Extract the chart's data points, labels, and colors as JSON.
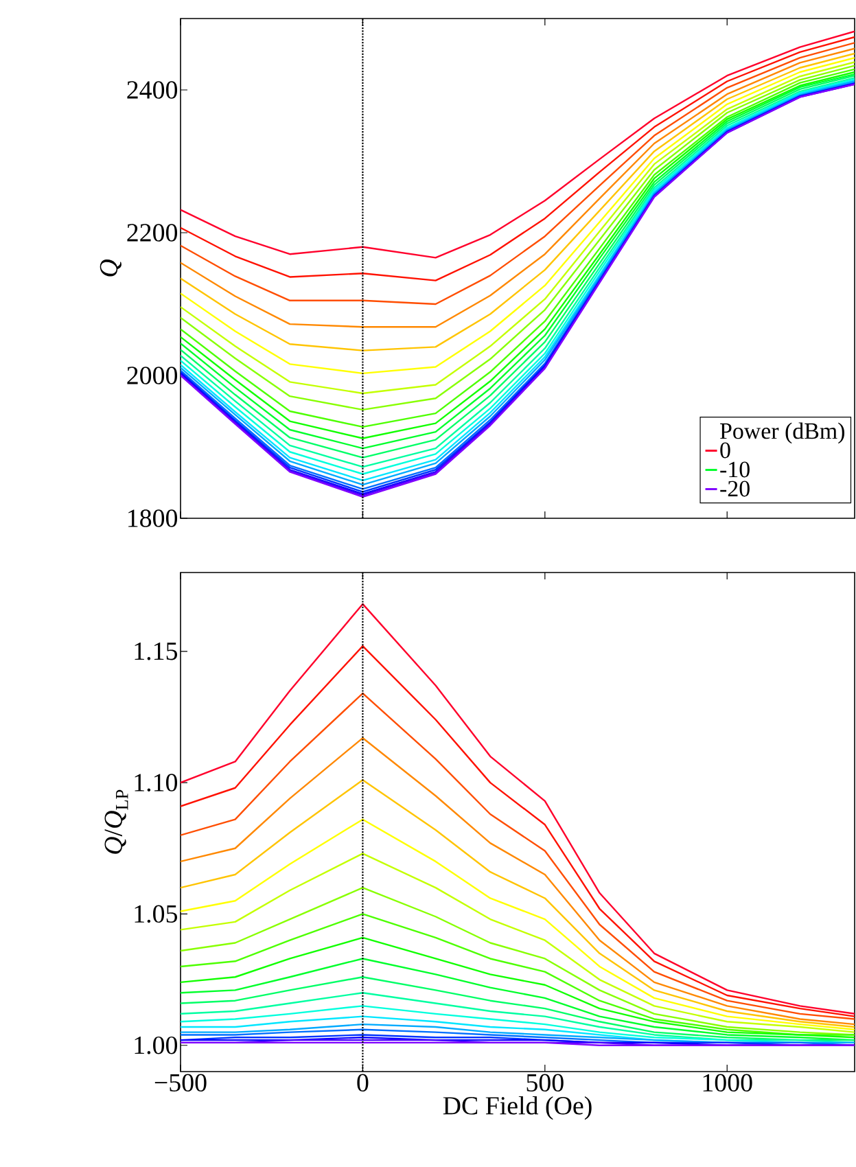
{
  "chart_data": [
    {
      "type": "line",
      "ylabel": "*Q*",
      "legend_title": "Power (dBm)",
      "legend": "bottom right",
      "marker": "none",
      "line_style": "solid",
      "tick_labels": "y",
      "xlim": [
        -500,
        1350
      ],
      "ylim": [
        1800,
        2500
      ],
      "xticks": [
        -500,
        0,
        500,
        1000
      ],
      "yticks": [
        1800,
        2000,
        2200,
        2400
      ],
      "ref_lines": [
        {
          "axis": "x",
          "value": 0,
          "color": "#000000",
          "line_style": "dotted"
        }
      ],
      "x": [
        -500,
        -350,
        -200,
        0,
        200,
        350,
        500,
        650,
        800,
        1000,
        1200,
        1350
      ],
      "series": [
        {
          "name": "0",
          "color": "#ff002b",
          "values": [
            2232,
            2195,
            2170,
            2180,
            2165,
            2197,
            2245,
            2303,
            2360,
            2420,
            2460,
            2482
          ]
        },
        {
          "color": "#ff1100",
          "values": [
            2207,
            2167,
            2138,
            2143,
            2133,
            2169,
            2220,
            2285,
            2348,
            2412,
            2453,
            2474
          ]
        },
        {
          "color": "#ff4d00",
          "values": [
            2182,
            2139,
            2105,
            2105,
            2100,
            2140,
            2195,
            2266,
            2336,
            2403,
            2445,
            2466
          ]
        },
        {
          "color": "#ff8800",
          "values": [
            2158,
            2111,
            2072,
            2068,
            2068,
            2112,
            2170,
            2248,
            2325,
            2394,
            2438,
            2458
          ]
        },
        {
          "color": "#ffc400",
          "values": [
            2136,
            2086,
            2044,
            2035,
            2040,
            2086,
            2148,
            2231,
            2314,
            2387,
            2431,
            2451
          ]
        },
        {
          "color": "#ffff00",
          "values": [
            2115,
            2062,
            2016,
            2003,
            2012,
            2062,
            2126,
            2215,
            2304,
            2380,
            2425,
            2445
          ]
        },
        {
          "color": "#c4ff00",
          "values": [
            2096,
            2041,
            1991,
            1975,
            1987,
            2041,
            2107,
            2202,
            2296,
            2373,
            2419,
            2439
          ]
        },
        {
          "color": "#88ff00",
          "values": [
            2081,
            2024,
            1971,
            1952,
            1968,
            2023,
            2092,
            2190,
            2288,
            2368,
            2414,
            2434
          ]
        },
        {
          "color": "#4dff00",
          "values": [
            2065,
            2006,
            1950,
            1928,
            1947,
            2005,
            2076,
            2178,
            2281,
            2362,
            2410,
            2429
          ]
        },
        {
          "color": "#11ff00",
          "values": [
            2054,
            1994,
            1936,
            1912,
            1933,
            1992,
            2065,
            2170,
            2276,
            2359,
            2406,
            2425
          ]
        },
        {
          "name": "-10",
          "color": "#00ff2b",
          "values": [
            2045,
            1983,
            1924,
            1898,
            1921,
            1982,
            2056,
            2164,
            2271,
            2356,
            2404,
            2422
          ]
        },
        {
          "color": "#00ff66",
          "values": [
            2036,
            1973,
            1913,
            1885,
            1910,
            1972,
            2047,
            2157,
            2267,
            2353,
            2401,
            2420
          ]
        },
        {
          "color": "#00ffa1",
          "values": [
            2028,
            1964,
            1902,
            1872,
            1898,
            1962,
            2038,
            2151,
            2263,
            2350,
            2398,
            2417
          ]
        },
        {
          "color": "#00ffdd",
          "values": [
            2021,
            1956,
            1893,
            1862,
            1890,
            1954,
            2031,
            2146,
            2260,
            2347,
            2396,
            2415
          ]
        },
        {
          "color": "#00e6ff",
          "values": [
            2015,
            1949,
            1885,
            1853,
            1882,
            1948,
            2026,
            2141,
            2257,
            2345,
            2395,
            2413
          ]
        },
        {
          "color": "#00aaff",
          "values": [
            2011,
            1945,
            1880,
            1847,
            1877,
            1943,
            2022,
            2138,
            2255,
            2344,
            2393,
            2412
          ]
        },
        {
          "color": "#006eff",
          "values": [
            2007,
            1940,
            1874,
            1841,
            1871,
            1938,
            2017,
            2135,
            2253,
            2342,
            2392,
            2410
          ]
        },
        {
          "color": "#0033ff",
          "values": [
            2005,
            1937,
            1871,
            1837,
            1868,
            1935,
            2015,
            2133,
            2252,
            2342,
            2391,
            2409
          ]
        },
        {
          "color": "#0800ff",
          "values": [
            2003,
            1935,
            1868,
            1834,
            1865,
            1933,
            2013,
            2132,
            2251,
            2341,
            2391,
            2409
          ]
        },
        {
          "color": "#4400ff",
          "values": [
            2001,
            1934,
            1867,
            1832,
            1864,
            1932,
            2011,
            2131,
            2251,
            2340,
            2390,
            2408
          ]
        },
        {
          "name": "-20",
          "color": "#8000ff",
          "values": [
            2000,
            1932,
            1865,
            1830,
            1862,
            1930,
            2010,
            2130,
            2250,
            2340,
            2390,
            2408
          ]
        }
      ]
    },
    {
      "type": "line",
      "xlabel": "DC Field (Oe)",
      "ylabel": "*Q*/*Q*$_{LP}$",
      "marker": "none",
      "line_style": "solid",
      "xlim": [
        -500,
        1350
      ],
      "ylim": [
        0.99,
        1.18
      ],
      "xticks": [
        {
          "value": -500,
          "label": "−500"
        },
        0,
        500,
        1000
      ],
      "yticks": [
        {
          "value": 1,
          "label": "1.00"
        },
        1.05,
        {
          "value": 1.1,
          "label": "1.10"
        },
        1.15
      ],
      "ref_lines": [
        {
          "axis": "x",
          "value": 0,
          "color": "#000000",
          "line_style": "dotted"
        }
      ],
      "x": [
        -500,
        -350,
        -200,
        0,
        200,
        350,
        500,
        650,
        800,
        1000,
        1200,
        1350
      ],
      "series": [
        {
          "color": "#ff002b",
          "values": [
            1.1,
            1.108,
            1.135,
            1.168,
            1.137,
            1.11,
            1.093,
            1.058,
            1.035,
            1.021,
            1.015,
            1.012
          ]
        },
        {
          "color": "#ff1100",
          "values": [
            1.091,
            1.098,
            1.122,
            1.152,
            1.124,
            1.1,
            1.084,
            1.052,
            1.032,
            1.019,
            1.014,
            1.011
          ]
        },
        {
          "color": "#ff4d00",
          "values": [
            1.08,
            1.086,
            1.108,
            1.134,
            1.109,
            1.088,
            1.074,
            1.046,
            1.028,
            1.017,
            1.012,
            1.01
          ]
        },
        {
          "color": "#ff8800",
          "values": [
            1.07,
            1.075,
            1.094,
            1.117,
            1.095,
            1.077,
            1.065,
            1.04,
            1.024,
            1.015,
            1.01,
            1.008
          ]
        },
        {
          "color": "#ffc400",
          "values": [
            1.06,
            1.065,
            1.081,
            1.101,
            1.082,
            1.066,
            1.056,
            1.035,
            1.021,
            1.013,
            1.009,
            1.007
          ]
        },
        {
          "color": "#ffff00",
          "values": [
            1.051,
            1.055,
            1.069,
            1.086,
            1.07,
            1.056,
            1.048,
            1.03,
            1.018,
            1.011,
            1.008,
            1.006
          ]
        },
        {
          "color": "#c4ff00",
          "values": [
            1.044,
            1.047,
            1.059,
            1.073,
            1.06,
            1.048,
            1.04,
            1.025,
            1.015,
            1.009,
            1.007,
            1.005
          ]
        },
        {
          "color": "#88ff00",
          "values": [
            1.036,
            1.039,
            1.048,
            1.06,
            1.049,
            1.039,
            1.033,
            1.021,
            1.012,
            1.007,
            1.005,
            1.004
          ]
        },
        {
          "color": "#4dff00",
          "values": [
            1.03,
            1.032,
            1.04,
            1.05,
            1.041,
            1.033,
            1.028,
            1.017,
            1.01,
            1.006,
            1.004,
            1.004
          ]
        },
        {
          "color": "#11ff00",
          "values": [
            1.024,
            1.026,
            1.033,
            1.041,
            1.033,
            1.027,
            1.023,
            1.014,
            1.009,
            1.005,
            1.004,
            1.003
          ]
        },
        {
          "color": "#00ff2b",
          "values": [
            1.02,
            1.021,
            1.026,
            1.033,
            1.027,
            1.022,
            1.018,
            1.011,
            1.007,
            1.004,
            1.003,
            1.002
          ]
        },
        {
          "color": "#00ff66",
          "values": [
            1.016,
            1.017,
            1.021,
            1.026,
            1.021,
            1.017,
            1.014,
            1.009,
            1.005,
            1.003,
            1.002,
            1.002
          ]
        },
        {
          "color": "#00ffa1",
          "values": [
            1.012,
            1.013,
            1.016,
            1.02,
            1.016,
            1.013,
            1.011,
            1.007,
            1.004,
            1.002,
            1.002,
            1.001
          ]
        },
        {
          "color": "#00ffdd",
          "values": [
            1.009,
            1.01,
            1.012,
            1.015,
            1.012,
            1.01,
            1.008,
            1.005,
            1.003,
            1.002,
            1.001,
            1.001
          ]
        },
        {
          "color": "#00e6ff",
          "values": [
            1.007,
            1.007,
            1.009,
            1.011,
            1.009,
            1.007,
            1.006,
            1.004,
            1.002,
            1.001,
            1.001,
            1.001
          ]
        },
        {
          "color": "#00aaff",
          "values": [
            1.005,
            1.005,
            1.006,
            1.008,
            1.007,
            1.005,
            1.004,
            1.003,
            1.002,
            1.001,
            1.001,
            1.001
          ]
        },
        {
          "color": "#006eff",
          "values": [
            1.004,
            1.004,
            1.005,
            1.006,
            1.005,
            1.004,
            1.003,
            1.002,
            1.001,
            1.001,
            1.001,
            1.0
          ]
        },
        {
          "color": "#0033ff",
          "values": [
            1.002,
            1.003,
            1.003,
            1.004,
            1.003,
            1.003,
            1.002,
            1.001,
            1.001,
            1.001,
            1.0,
            1.0
          ]
        },
        {
          "color": "#0800ff",
          "values": [
            1.002,
            1.002,
            1.002,
            1.003,
            1.002,
            1.002,
            1.002,
            1.001,
            1.001,
            1.0,
            1.0,
            1.0
          ]
        },
        {
          "color": "#4400ff",
          "values": [
            1.001,
            1.001,
            1.002,
            1.002,
            1.002,
            1.001,
            1.001,
            1.001,
            1.0,
            1.0,
            1.0,
            1.0
          ]
        },
        {
          "color": "#8000ff",
          "values": [
            1.001,
            1.001,
            1.001,
            1.001,
            1.001,
            1.001,
            1.001,
            1.0,
            1.0,
            1.0,
            1.0,
            1.0
          ]
        }
      ]
    }
  ]
}
